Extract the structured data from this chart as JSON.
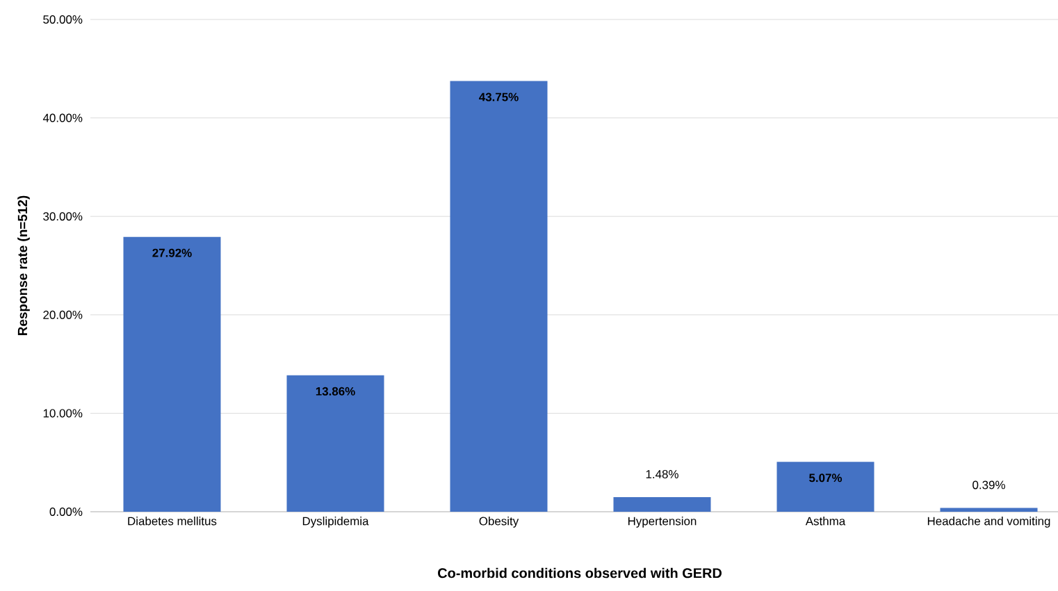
{
  "chart_data": {
    "type": "bar",
    "xlabel": "Co-morbid conditions observed with GERD",
    "ylabel": "Response rate (n=512)",
    "categories": [
      "Diabetes mellitus",
      "Dyslipidemia",
      "Obesity",
      "Hypertension",
      "Asthma",
      "Headache and vomiting"
    ],
    "values": [
      27.92,
      13.86,
      43.75,
      1.48,
      5.07,
      0.39
    ],
    "value_labels": [
      "27.92%",
      "13.86%",
      "43.75%",
      "1.48%",
      "5.07%",
      "0.39%"
    ],
    "color": "#4472c4",
    "ylim": [
      0,
      50
    ],
    "yticks": [
      {
        "value": 0,
        "label": "0.00%"
      },
      {
        "value": 10,
        "label": "10.00%"
      },
      {
        "value": 20,
        "label": "20.00%"
      },
      {
        "value": 30,
        "label": "30.00%"
      },
      {
        "value": 40,
        "label": "40.00%"
      },
      {
        "value": 50,
        "label": "50.00%"
      }
    ],
    "grid": "y"
  }
}
